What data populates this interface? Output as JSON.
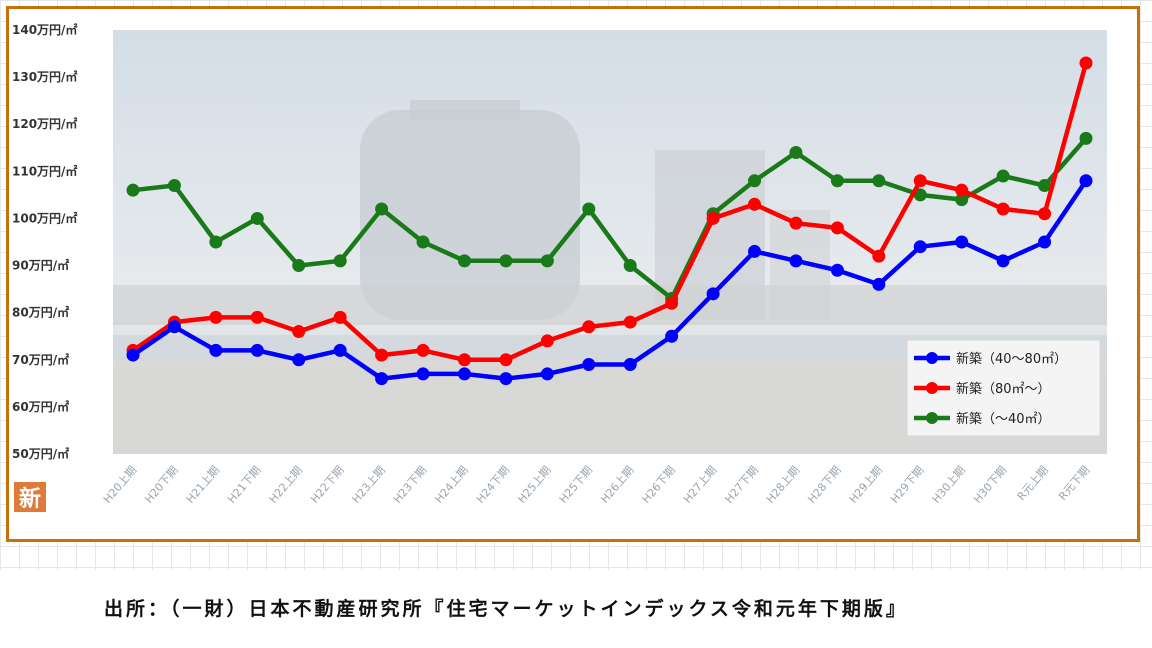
{
  "chart_data": {
    "type": "line",
    "categories": [
      "H20上期",
      "H20下期",
      "H21上期",
      "H21下期",
      "H22上期",
      "H22下期",
      "H23上期",
      "H23下期",
      "H24上期",
      "H24下期",
      "H25上期",
      "H25下期",
      "H26上期",
      "H26下期",
      "H27上期",
      "H27下期",
      "H28上期",
      "H28下期",
      "H29上期",
      "H29下期",
      "H30上期",
      "H30下期",
      "R元上期",
      "R元下期"
    ],
    "yticks": [
      "50万円/㎡",
      "60万円/㎡",
      "70万円/㎡",
      "80万円/㎡",
      "90万円/㎡",
      "100万円/㎡",
      "110万円/㎡",
      "120万円/㎡",
      "130万円/㎡",
      "140万円/㎡"
    ],
    "ylim": [
      50,
      140
    ],
    "grid": false,
    "legend_position": "bottom-right",
    "series": [
      {
        "name": "新築（40～80㎡）",
        "color": "#0000ff",
        "values": [
          71,
          77,
          72,
          72,
          70,
          72,
          66,
          67,
          67,
          66,
          67,
          69,
          69,
          75,
          84,
          93,
          91,
          89,
          86,
          94,
          95,
          91,
          95,
          108
        ]
      },
      {
        "name": "新築（80㎡～）",
        "color": "#ff0000",
        "values": [
          72,
          78,
          79,
          79,
          76,
          79,
          71,
          72,
          70,
          70,
          74,
          77,
          78,
          82,
          100,
          103,
          99,
          98,
          92,
          108,
          106,
          102,
          101,
          133
        ]
      },
      {
        "name": "新築（～40㎡）",
        "color": "#1a7a1a",
        "values": [
          106,
          107,
          95,
          100,
          90,
          91,
          102,
          95,
          91,
          91,
          91,
          102,
          90,
          83,
          101,
          108,
          114,
          108,
          108,
          105,
          104,
          109,
          107,
          117
        ]
      }
    ]
  },
  "logo_text": "新",
  "source": "出所：（一財）日本不動産研究所『住宅マーケットインデックス令和元年下期版』"
}
